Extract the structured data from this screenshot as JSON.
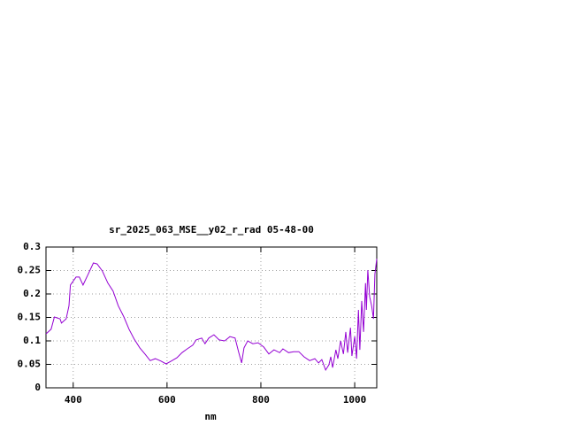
{
  "chart_data": {
    "type": "line",
    "title": "sr_2025_063_MSE__y02_r_rad 05-48-00",
    "x_label": "nm",
    "x": [
      342,
      353,
      360,
      372,
      375,
      385,
      391,
      394,
      406,
      413,
      421,
      432,
      443,
      451,
      462,
      474,
      485,
      496,
      508,
      519,
      530,
      542,
      553,
      564,
      575,
      587,
      598,
      609,
      621,
      632,
      643,
      655,
      662,
      674,
      681,
      689,
      700,
      711,
      723,
      734,
      745,
      753,
      759,
      764,
      772,
      783,
      794,
      806,
      817,
      828,
      840,
      847,
      859,
      870,
      881,
      892,
      904,
      915,
      923,
      930,
      938,
      945,
      949,
      953,
      960,
      964,
      970,
      976,
      981,
      985,
      991,
      994,
      1000,
      1004,
      1008,
      1011,
      1015,
      1019,
      1023,
      1025,
      1028,
      1032,
      1036,
      1040,
      1043,
      1047
    ],
    "series": [
      {
        "name": "sr_2025_063_MSE__y02_r_rad",
        "color": "#9400d3",
        "values": [
          0.115,
          0.125,
          0.151,
          0.147,
          0.138,
          0.147,
          0.175,
          0.219,
          0.236,
          0.236,
          0.219,
          0.242,
          0.266,
          0.264,
          0.249,
          0.223,
          0.206,
          0.175,
          0.151,
          0.125,
          0.104,
          0.085,
          0.072,
          0.058,
          0.062,
          0.057,
          0.051,
          0.057,
          0.064,
          0.075,
          0.083,
          0.091,
          0.102,
          0.106,
          0.094,
          0.106,
          0.113,
          0.102,
          0.1,
          0.109,
          0.106,
          0.075,
          0.053,
          0.085,
          0.1,
          0.094,
          0.096,
          0.087,
          0.072,
          0.081,
          0.075,
          0.083,
          0.075,
          0.077,
          0.077,
          0.066,
          0.058,
          0.062,
          0.053,
          0.06,
          0.038,
          0.049,
          0.066,
          0.043,
          0.081,
          0.062,
          0.1,
          0.072,
          0.119,
          0.075,
          0.128,
          0.068,
          0.109,
          0.062,
          0.166,
          0.081,
          0.185,
          0.119,
          0.223,
          0.166,
          0.251,
          0.194,
          0.175,
          0.147,
          0.242,
          0.275
        ]
      }
    ],
    "xlim": [
      342,
      1047
    ],
    "xticks": [
      400,
      600,
      800,
      1000
    ],
    "ylim": [
      0,
      0.3
    ],
    "yticks": [
      0,
      0.05,
      0.1,
      0.15,
      0.2,
      0.25,
      0.3
    ],
    "grid": true
  }
}
